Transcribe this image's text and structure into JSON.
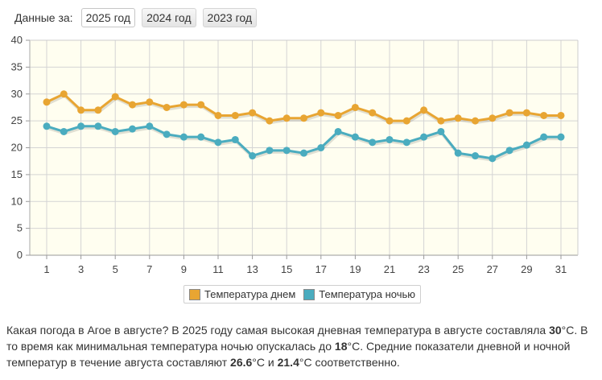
{
  "header": {
    "label": "Данные за:",
    "years": [
      {
        "label": "2025 год",
        "active": true
      },
      {
        "label": "2024 год",
        "active": false
      },
      {
        "label": "2023 год",
        "active": false
      }
    ]
  },
  "legend": {
    "day": "Температура днем",
    "night": "Температура ночью"
  },
  "description": {
    "p1": "Какая погода в Агое в августе? В 2025 году самая высокая дневная температура в августе составляла ",
    "max_day": "30",
    "p2": "°C. В то время как минимальная температура ночью опускалась до ",
    "min_night": "18",
    "p3": "°C. Средние показатели дневной и ночной температур в течение августа составляют ",
    "avg_day": "26.6",
    "p4": "°C и ",
    "avg_night": "21.4",
    "p5": "°C соответственно."
  },
  "chart_data": {
    "type": "line",
    "x": [
      1,
      2,
      3,
      4,
      5,
      6,
      7,
      8,
      9,
      10,
      11,
      12,
      13,
      14,
      15,
      16,
      17,
      18,
      19,
      20,
      21,
      22,
      23,
      24,
      25,
      26,
      27,
      28,
      29,
      30,
      31
    ],
    "x_ticks": [
      1,
      3,
      5,
      7,
      9,
      11,
      13,
      15,
      17,
      19,
      21,
      23,
      25,
      27,
      29,
      31
    ],
    "ylim": [
      0,
      40
    ],
    "y_ticks": [
      0,
      5,
      10,
      15,
      20,
      25,
      30,
      35,
      40
    ],
    "grid": true,
    "legend_position": "bottom-center",
    "series": [
      {
        "name": "Температура днем",
        "color": "#e8a532",
        "values": [
          28.5,
          30,
          27,
          27,
          29.5,
          28,
          28.5,
          27.5,
          28,
          28,
          26,
          26,
          26.5,
          25,
          25.5,
          25.5,
          26.5,
          26,
          27.5,
          26.5,
          25,
          25,
          27,
          25,
          25.5,
          25,
          25.5,
          26.5,
          26.5,
          26,
          26
        ]
      },
      {
        "name": "Температура ночью",
        "color": "#4aacbf",
        "values": [
          24,
          23,
          24,
          24,
          23,
          23.5,
          24,
          22.5,
          22,
          22,
          21,
          21.5,
          18.5,
          19.5,
          19.5,
          19,
          20,
          23,
          22,
          21,
          21.5,
          21,
          22,
          23,
          19,
          18.5,
          18,
          19.5,
          20.5,
          22,
          22
        ]
      }
    ]
  }
}
